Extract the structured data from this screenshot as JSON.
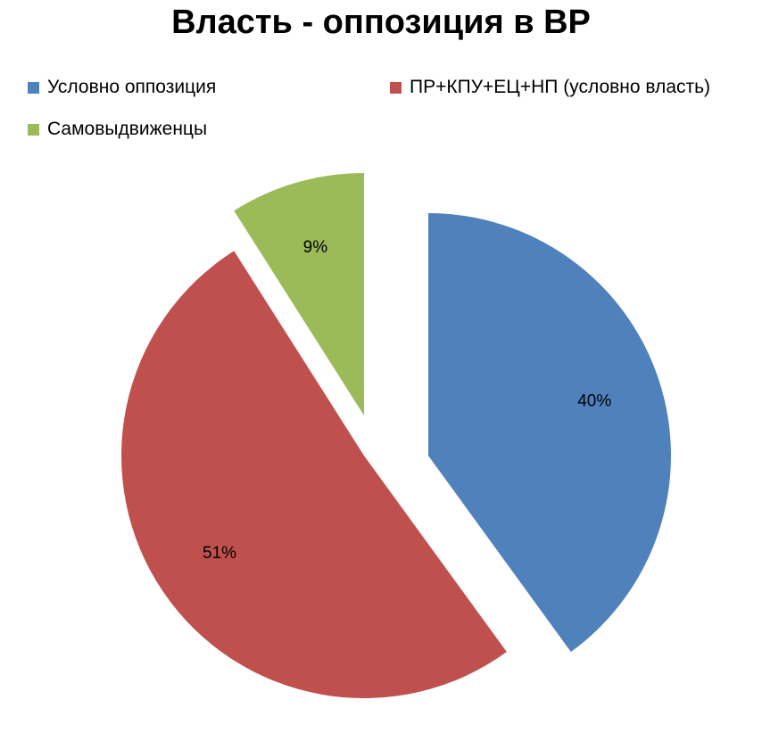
{
  "chart_data": {
    "type": "pie",
    "title": "Власть - оппозиция в ВР",
    "legend_placement": "top",
    "slices": [
      {
        "name": "Условно оппозиция",
        "value": 40,
        "label": "40%",
        "color": "#4f81bd"
      },
      {
        "name": "ПР+КПУ+ЕЦ+НП (условно власть)",
        "value": 51,
        "label": "51%",
        "color": "#c0504d"
      },
      {
        "name": "Самовыдвиженцы",
        "value": 9,
        "label": "9%",
        "color": "#9bbb59"
      }
    ],
    "exploded": true
  }
}
